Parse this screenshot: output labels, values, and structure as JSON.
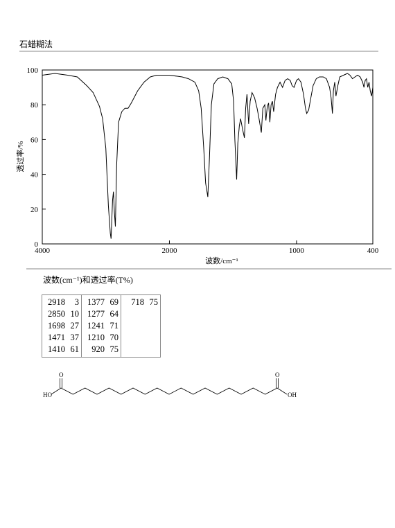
{
  "header": {
    "title": "石蜡糊法"
  },
  "chart_data": {
    "type": "line",
    "xlabel": "波数/cm⁻¹",
    "ylabel": "透过率/%",
    "xlim": [
      4000,
      400
    ],
    "xticks": [
      4000,
      2000,
      1000,
      400
    ],
    "ylim": [
      0,
      100
    ],
    "yticks": [
      0,
      20,
      40,
      60,
      80,
      100
    ],
    "color": "#000000",
    "x": [
      4000,
      3800,
      3600,
      3450,
      3300,
      3200,
      3100,
      3050,
      3000,
      2960,
      2930,
      2918,
      2895,
      2880,
      2865,
      2850,
      2830,
      2800,
      2750,
      2700,
      2650,
      2600,
      2500,
      2400,
      2300,
      2200,
      2100,
      2000,
      1900,
      1850,
      1800,
      1770,
      1750,
      1730,
      1715,
      1698,
      1685,
      1670,
      1650,
      1620,
      1580,
      1540,
      1510,
      1495,
      1485,
      1471,
      1462,
      1450,
      1440,
      1425,
      1410,
      1400,
      1390,
      1377,
      1365,
      1350,
      1330,
      1310,
      1295,
      1277,
      1265,
      1250,
      1241,
      1230,
      1220,
      1210,
      1200,
      1190,
      1180,
      1165,
      1150,
      1130,
      1110,
      1090,
      1070,
      1050,
      1035,
      1020,
      1000,
      985,
      965,
      945,
      930,
      920,
      905,
      890,
      870,
      845,
      820,
      790,
      765,
      740,
      728,
      718,
      710,
      700,
      690,
      675,
      660,
      630,
      600,
      580,
      560,
      540,
      520,
      500,
      480,
      470,
      460,
      450,
      440,
      430,
      420,
      410,
      400
    ],
    "values": [
      97,
      98,
      97,
      96,
      91,
      87,
      79,
      72,
      55,
      22,
      6,
      3,
      25,
      30,
      18,
      10,
      45,
      70,
      76,
      78,
      78,
      81,
      88,
      93,
      96,
      97,
      97,
      97,
      96,
      95,
      93,
      88,
      78,
      55,
      35,
      27,
      50,
      80,
      92,
      95,
      96,
      95,
      92,
      82,
      60,
      37,
      58,
      68,
      72,
      66,
      61,
      78,
      86,
      69,
      82,
      87,
      84,
      78,
      72,
      64,
      78,
      80,
      71,
      79,
      81,
      70,
      80,
      82,
      76,
      86,
      90,
      93,
      90,
      94,
      95,
      94,
      91,
      90,
      94,
      95,
      93,
      86,
      78,
      75,
      77,
      83,
      91,
      95,
      96,
      96,
      95,
      90,
      84,
      75,
      88,
      93,
      85,
      91,
      96,
      97,
      98,
      97,
      95,
      96,
      97,
      96,
      93,
      90,
      94,
      95,
      90,
      93,
      88,
      85,
      90
    ]
  },
  "peaks": {
    "caption": "波数(cm⁻¹)和透过率(T%)",
    "columns": [
      [
        [
          2918,
          3
        ],
        [
          2850,
          10
        ],
        [
          1698,
          27
        ],
        [
          1471,
          37
        ],
        [
          1410,
          61
        ]
      ],
      [
        [
          1377,
          69
        ],
        [
          1277,
          64
        ],
        [
          1241,
          71
        ],
        [
          1210,
          70
        ],
        [
          920,
          75
        ]
      ],
      [
        [
          718,
          75
        ]
      ]
    ]
  },
  "structure": {
    "labels": [
      "HO",
      "O",
      "O",
      "OH"
    ]
  }
}
